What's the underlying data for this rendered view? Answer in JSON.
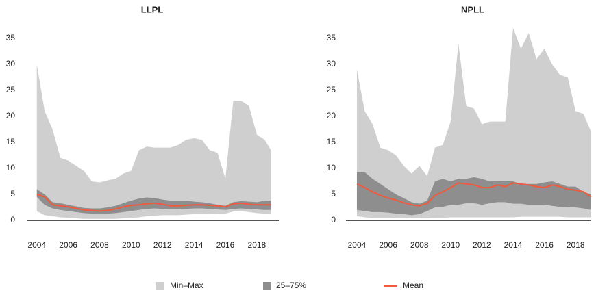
{
  "chart_data": [
    {
      "type": "band-line",
      "title": "LLPL",
      "x": [
        2004,
        2004.5,
        2005,
        2005.5,
        2006,
        2006.5,
        2007,
        2007.5,
        2008,
        2008.5,
        2009,
        2009.5,
        2010,
        2010.5,
        2011,
        2011.5,
        2012,
        2012.5,
        2013,
        2013.5,
        2014,
        2014.5,
        2015,
        2015.5,
        2016,
        2016.5,
        2017,
        2017.5,
        2018,
        2018.5,
        2018.9
      ],
      "xlim": [
        2003.4,
        2019.4
      ],
      "xticks": [
        2004,
        2006,
        2008,
        2010,
        2012,
        2014,
        2016,
        2018
      ],
      "ylim": [
        0,
        35
      ],
      "yticks": [
        0,
        5,
        10,
        15,
        20,
        25,
        30,
        35
      ],
      "series": [
        {
          "name": "Min–Max",
          "color": "#cfcfcf",
          "low": [
            1.8,
            1.0,
            0.8,
            0.6,
            0.5,
            0.4,
            0.3,
            0.3,
            0.3,
            0.3,
            0.3,
            0.4,
            0.5,
            0.6,
            0.8,
            0.9,
            1.0,
            1.0,
            1.0,
            1.1,
            1.2,
            1.2,
            1.2,
            1.3,
            1.3,
            1.7,
            1.8,
            1.6,
            1.4,
            1.3,
            1.3
          ],
          "high": [
            30,
            21,
            17.5,
            12,
            11.5,
            10.5,
            9.5,
            7.5,
            7.3,
            7.7,
            8,
            9,
            9.5,
            13.5,
            14.2,
            14,
            14,
            14,
            14.5,
            15.5,
            15.8,
            15.5,
            13.5,
            13,
            8,
            23,
            23,
            22,
            16.5,
            15.5,
            13.5
          ]
        },
        {
          "name": "25–75%",
          "color": "#8e8e8e",
          "low": [
            4.5,
            3.0,
            2.3,
            2.0,
            1.8,
            1.6,
            1.4,
            1.3,
            1.3,
            1.3,
            1.4,
            1.6,
            1.8,
            2.0,
            2.2,
            2.3,
            2.2,
            2.1,
            2.1,
            2.2,
            2.3,
            2.3,
            2.2,
            2.1,
            2.0,
            2.2,
            2.3,
            2.2,
            2.1,
            2.0,
            2.0
          ],
          "high": [
            6.0,
            5.0,
            3.5,
            3.3,
            3.0,
            2.7,
            2.4,
            2.3,
            2.3,
            2.5,
            2.8,
            3.3,
            3.8,
            4.2,
            4.4,
            4.3,
            4.0,
            3.8,
            3.8,
            3.8,
            3.6,
            3.5,
            3.3,
            3.0,
            2.8,
            3.5,
            3.7,
            3.6,
            3.5,
            3.8,
            3.8
          ]
        },
        {
          "name": "Mean",
          "color": "#f05a3c",
          "values": [
            5.0,
            4.5,
            3.0,
            2.8,
            2.6,
            2.3,
            2.0,
            1.9,
            1.8,
            1.9,
            2.2,
            2.6,
            2.9,
            3.0,
            3.2,
            3.3,
            3.1,
            2.8,
            2.8,
            2.9,
            3.0,
            3.0,
            2.9,
            2.8,
            2.6,
            3.2,
            3.3,
            3.1,
            3.0,
            3.0,
            3.0
          ]
        }
      ]
    },
    {
      "type": "band-line",
      "title": "NPLL",
      "x": [
        2004,
        2004.5,
        2005,
        2005.5,
        2006,
        2006.5,
        2007,
        2007.5,
        2008,
        2008.5,
        2009,
        2009.5,
        2010,
        2010.5,
        2011,
        2011.5,
        2012,
        2012.5,
        2013,
        2013.5,
        2014,
        2014.5,
        2015,
        2015.5,
        2016,
        2016.5,
        2017,
        2017.5,
        2018,
        2018.5,
        2019
      ],
      "xlim": [
        2003.3,
        2019.0
      ],
      "xticks": [
        2004,
        2006,
        2008,
        2010,
        2012,
        2014,
        2016,
        2018
      ],
      "ylim": [
        0,
        35
      ],
      "yticks": [
        0,
        5,
        10,
        15,
        20,
        25,
        30,
        35
      ],
      "series": [
        {
          "color": "#cfcfcf",
          "low": [
            0.8,
            0.6,
            0.5,
            0.5,
            0.5,
            0.4,
            0.4,
            0.4,
            0.4,
            0.4,
            0.5,
            0.5,
            0.6,
            0.6,
            0.6,
            0.6,
            0.6,
            0.6,
            0.6,
            0.6,
            0.6,
            0.7,
            0.7,
            0.7,
            0.7,
            0.7,
            0.7,
            0.6,
            0.6,
            0.6,
            0.6
          ],
          "high": [
            29,
            21,
            18.5,
            14,
            13.5,
            12.5,
            10.5,
            9,
            10.5,
            8.5,
            14,
            14.5,
            19,
            34,
            22,
            21.5,
            18.5,
            19,
            19,
            19,
            37,
            33,
            36,
            31,
            33,
            30,
            28,
            27.5,
            21,
            20.5,
            17
          ]
        },
        {
          "color": "#8e8e8e",
          "low": [
            2.0,
            1.8,
            1.6,
            1.6,
            1.5,
            1.3,
            1.2,
            1.0,
            1.2,
            1.8,
            2.5,
            2.6,
            3.0,
            3.0,
            3.3,
            3.3,
            3.0,
            3.3,
            3.5,
            3.5,
            3.2,
            3.2,
            3.0,
            3.0,
            3.0,
            2.8,
            2.6,
            2.5,
            2.5,
            2.3,
            2.0
          ],
          "high": [
            9.3,
            9.3,
            8.0,
            7.0,
            6.0,
            5.0,
            4.3,
            3.5,
            3.2,
            3.8,
            7.5,
            8.0,
            7.5,
            8.0,
            8.0,
            8.3,
            8.0,
            7.5,
            7.5,
            7.5,
            7.5,
            7.0,
            7.0,
            7.0,
            7.3,
            7.5,
            7.0,
            6.5,
            6.5,
            5.5,
            5.0
          ]
        },
        {
          "color": "#f05a3c",
          "values": [
            7.0,
            6.3,
            5.5,
            4.8,
            4.3,
            3.9,
            3.4,
            3.0,
            2.8,
            3.3,
            4.8,
            5.5,
            6.3,
            7.2,
            7.0,
            6.8,
            6.3,
            6.3,
            6.8,
            6.5,
            7.2,
            7.0,
            6.8,
            6.5,
            6.3,
            6.8,
            6.5,
            6.0,
            5.8,
            5.5,
            4.5
          ]
        }
      ]
    }
  ]
}
